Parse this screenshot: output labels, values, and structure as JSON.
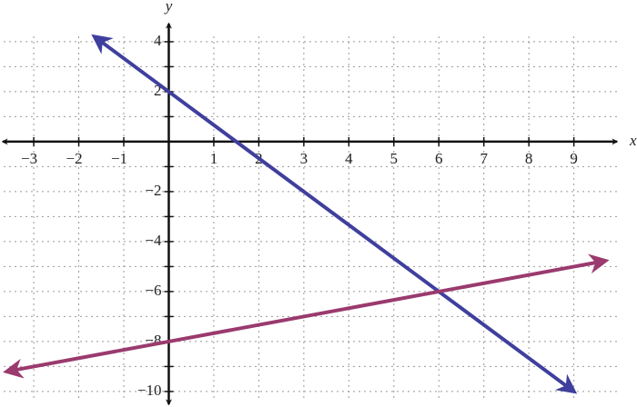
{
  "chart_data": {
    "type": "line",
    "x_label": "x",
    "y_label": "y",
    "xlim": [
      -3.75,
      10.2
    ],
    "ylim": [
      -10.33,
      4.87
    ],
    "xticks": [
      {
        "value": -3,
        "label": "−3"
      },
      {
        "value": -2,
        "label": "−2"
      },
      {
        "value": -1,
        "label": "−1"
      },
      1,
      2,
      3,
      4,
      5,
      6,
      7,
      8,
      9
    ],
    "yticks": [
      4,
      2,
      {
        "value": -2,
        "label": "−2"
      },
      {
        "value": -4,
        "label": "−4"
      },
      {
        "value": -6,
        "label": "−6"
      },
      {
        "value": -8,
        "label": "−8"
      },
      {
        "value": -10,
        "label": "−10"
      }
    ],
    "yminor_ticks": [
      3,
      1,
      -1,
      -3,
      -5,
      -7,
      -9
    ],
    "grid": true,
    "series": [
      {
        "color": "#3f3f9e",
        "x": [
          -1.65,
          0,
          6,
          9
        ],
        "values": [
          4.2,
          2,
          -6,
          -10
        ]
      },
      {
        "color": "#9a3a6e",
        "x": [
          -3.6,
          0,
          6,
          9.7
        ],
        "values": [
          -9.2,
          -8,
          -6,
          -4.77
        ]
      }
    ]
  }
}
